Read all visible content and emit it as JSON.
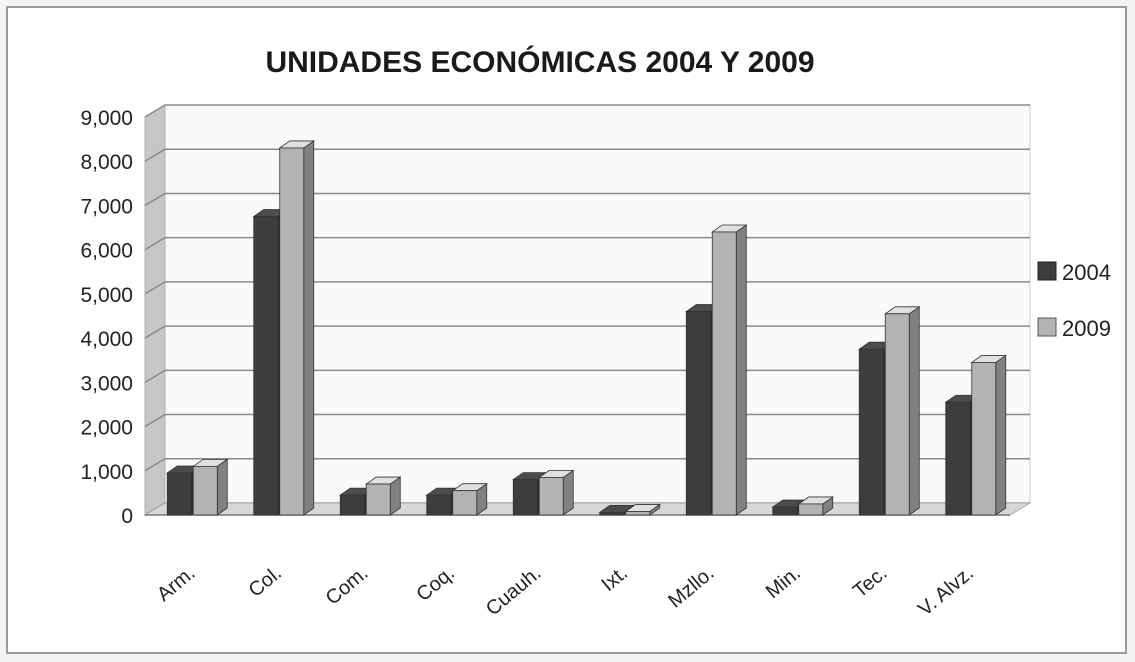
{
  "chart_data": {
    "type": "bar",
    "title": "UNIDADES ECONÓMICAS 2004 Y 2009",
    "categories": [
      "Arm.",
      "Col.",
      "Com.",
      "Coq.",
      "Cuauh.",
      "Ixt.",
      "Mzllo.",
      "Min.",
      "Tec.",
      "V. Alvz."
    ],
    "series": [
      {
        "name": "2004",
        "values": [
          950,
          6750,
          450,
          450,
          800,
          60,
          4600,
          180,
          3750,
          2550
        ]
      },
      {
        "name": "2009",
        "values": [
          1100,
          8300,
          700,
          550,
          850,
          80,
          6400,
          250,
          4550,
          3450
        ]
      }
    ],
    "yticks": [
      "0",
      "1,000",
      "2,000",
      "3,000",
      "4,000",
      "5,000",
      "6,000",
      "7,000",
      "8,000",
      "9,000"
    ],
    "ylim": [
      0,
      9000
    ],
    "grid": true,
    "legend_position": "right",
    "colors": {
      "s2004": "#3d3d3d",
      "s2009": "#b3b3b3"
    }
  }
}
